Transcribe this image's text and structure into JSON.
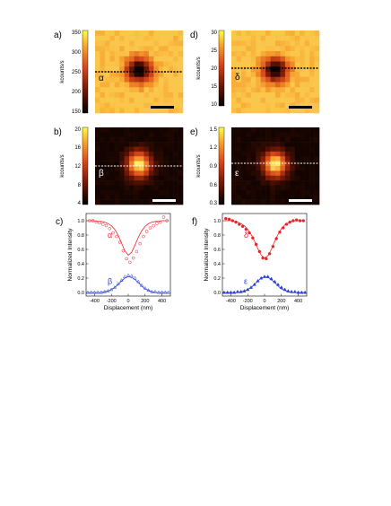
{
  "colors": {
    "red": "#e8252a",
    "blue": "#2b3fd6",
    "cbar_top": "#ffff40",
    "cbar_bottom": "#000000"
  },
  "panels": [
    {
      "id": "a",
      "label": "a)",
      "style": "light",
      "cbar_label": "kcounts/s",
      "ticks": [
        "350",
        "300",
        "250",
        "200",
        "150"
      ],
      "greek": "α",
      "line_color": "#000000",
      "scalebar_color": "#000000"
    },
    {
      "id": "b",
      "label": "b)",
      "style": "dark",
      "cbar_label": "kcounts/s",
      "ticks": [
        "20",
        "16",
        "12",
        "8",
        "4"
      ],
      "greek": "β",
      "line_color": "#ffffff",
      "scalebar_color": "#ffffff"
    },
    {
      "id": "d",
      "label": "d)",
      "style": "light",
      "cbar_label": "kcounts/s",
      "ticks": [
        "30",
        "25",
        "20",
        "15",
        "10"
      ],
      "greek": "δ",
      "line_color": "#000000",
      "scalebar_color": "#000000"
    },
    {
      "id": "e",
      "label": "e)",
      "style": "dark",
      "cbar_label": "kcounts/s",
      "ticks": [
        "1.5",
        "1.2",
        "0.9",
        "0.6",
        "0.3"
      ],
      "greek": "ε",
      "line_color": "#ffffff",
      "scalebar_color": "#ffffff"
    }
  ],
  "chart_data": [
    {
      "id": "c",
      "label": "c)",
      "type": "scatter",
      "xlabel": "Displacement (nm)",
      "ylabel": "Normalized Intensity",
      "xlim": [
        -500,
        500
      ],
      "ylim": [
        -0.05,
        1.1
      ],
      "xticks": [
        -400,
        -200,
        0,
        200,
        400
      ],
      "yticks": [
        0.0,
        0.2,
        0.4,
        0.6,
        0.8,
        1.0
      ],
      "series": [
        {
          "name": "α",
          "color": "#e8252a",
          "marker": "open-circle",
          "x": [
            -460,
            -420,
            -380,
            -340,
            -300,
            -260,
            -220,
            -180,
            -140,
            -100,
            -60,
            -20,
            20,
            60,
            100,
            140,
            180,
            220,
            260,
            300,
            340,
            380,
            420,
            460
          ],
          "y": [
            1.0,
            1.0,
            0.98,
            0.97,
            0.95,
            0.93,
            0.89,
            0.83,
            0.78,
            0.7,
            0.58,
            0.47,
            0.42,
            0.48,
            0.57,
            0.68,
            0.78,
            0.85,
            0.9,
            0.93,
            0.96,
            0.98,
            1.05,
            1.0
          ]
        },
        {
          "name": "α fit",
          "color": "#e8252a",
          "marker": "line",
          "x": [
            -480,
            -440,
            -400,
            -360,
            -320,
            -280,
            -240,
            -200,
            -160,
            -120,
            -80,
            -40,
            0,
            40,
            80,
            120,
            160,
            200,
            240,
            280,
            320,
            360,
            400,
            440,
            480
          ],
          "y": [
            1.0,
            1.0,
            1.0,
            0.99,
            0.99,
            0.98,
            0.96,
            0.93,
            0.88,
            0.8,
            0.69,
            0.58,
            0.52,
            0.56,
            0.66,
            0.77,
            0.86,
            0.92,
            0.96,
            0.98,
            0.99,
            0.99,
            1.0,
            1.0,
            1.0
          ]
        },
        {
          "name": "β",
          "color": "#2b3fd6",
          "marker": "open-triangle",
          "x": [
            -480,
            -440,
            -400,
            -360,
            -320,
            -280,
            -240,
            -200,
            -160,
            -120,
            -80,
            -40,
            0,
            40,
            80,
            120,
            160,
            200,
            240,
            280,
            320,
            360,
            400,
            440,
            480
          ],
          "y": [
            0.0,
            0.0,
            0.0,
            0.0,
            0.0,
            0.01,
            0.02,
            0.04,
            0.07,
            0.12,
            0.17,
            0.22,
            0.24,
            0.23,
            0.2,
            0.15,
            0.1,
            0.06,
            0.03,
            0.01,
            0.01,
            0.0,
            0.0,
            0.0,
            0.0
          ]
        },
        {
          "name": "β fit",
          "color": "#2b3fd6",
          "marker": "line",
          "x": [
            -480,
            -440,
            -400,
            -360,
            -320,
            -280,
            -240,
            -200,
            -160,
            -120,
            -80,
            -40,
            0,
            40,
            80,
            120,
            160,
            200,
            240,
            280,
            320,
            360,
            400,
            440,
            480
          ],
          "y": [
            0.0,
            0.0,
            0.0,
            0.0,
            0.0,
            0.01,
            0.02,
            0.04,
            0.07,
            0.11,
            0.16,
            0.2,
            0.22,
            0.21,
            0.18,
            0.14,
            0.09,
            0.05,
            0.03,
            0.01,
            0.0,
            0.0,
            0.0,
            0.0,
            0.0
          ]
        }
      ]
    },
    {
      "id": "f",
      "label": "f)",
      "type": "scatter",
      "xlabel": "Displacement (nm)",
      "ylabel": "Normalized Intensity",
      "xlim": [
        -500,
        500
      ],
      "ylim": [
        -0.05,
        1.1
      ],
      "xticks": [
        -400,
        -200,
        0,
        200,
        400
      ],
      "yticks": [
        0.0,
        0.2,
        0.4,
        0.6,
        0.8,
        1.0
      ],
      "series": [
        {
          "name": "δ",
          "color": "#e8252a",
          "marker": "filled-circle",
          "x": [
            -460,
            -420,
            -380,
            -340,
            -300,
            -260,
            -220,
            -180,
            -140,
            -100,
            -60,
            -20,
            20,
            60,
            100,
            140,
            180,
            220,
            260,
            300,
            340,
            380,
            420,
            460
          ],
          "y": [
            1.03,
            1.02,
            1.0,
            0.98,
            0.95,
            0.92,
            0.88,
            0.83,
            0.76,
            0.67,
            0.57,
            0.48,
            0.47,
            0.54,
            0.64,
            0.75,
            0.84,
            0.9,
            0.95,
            0.98,
            1.0,
            1.01,
            1.0,
            1.0
          ]
        },
        {
          "name": "δ fit",
          "color": "#e8252a",
          "marker": "line",
          "x": [
            -480,
            -440,
            -400,
            -360,
            -320,
            -280,
            -240,
            -200,
            -160,
            -120,
            -80,
            -40,
            0,
            40,
            80,
            120,
            160,
            200,
            240,
            280,
            320,
            360,
            400,
            440,
            480
          ],
          "y": [
            1.0,
            1.0,
            1.0,
            0.99,
            0.98,
            0.96,
            0.93,
            0.88,
            0.81,
            0.72,
            0.61,
            0.52,
            0.48,
            0.51,
            0.6,
            0.71,
            0.81,
            0.89,
            0.94,
            0.97,
            0.99,
            1.0,
            1.0,
            1.0,
            1.0
          ]
        },
        {
          "name": "ε",
          "color": "#2b3fd6",
          "marker": "filled-triangle",
          "x": [
            -480,
            -440,
            -400,
            -360,
            -320,
            -280,
            -240,
            -200,
            -160,
            -120,
            -80,
            -40,
            0,
            40,
            80,
            120,
            160,
            200,
            240,
            280,
            320,
            360,
            400,
            440,
            480
          ],
          "y": [
            0.0,
            0.0,
            0.0,
            0.0,
            0.01,
            0.01,
            0.02,
            0.04,
            0.07,
            0.11,
            0.16,
            0.2,
            0.22,
            0.22,
            0.19,
            0.15,
            0.11,
            0.07,
            0.04,
            0.02,
            0.01,
            0.01,
            0.0,
            0.0,
            0.0
          ]
        },
        {
          "name": "ε fit",
          "color": "#2b3fd6",
          "marker": "line",
          "x": [
            -480,
            -440,
            -400,
            -360,
            -320,
            -280,
            -240,
            -200,
            -160,
            -120,
            -80,
            -40,
            0,
            40,
            80,
            120,
            160,
            200,
            240,
            280,
            320,
            360,
            400,
            440,
            480
          ],
          "y": [
            0.0,
            0.0,
            0.0,
            0.0,
            0.0,
            0.01,
            0.02,
            0.04,
            0.07,
            0.11,
            0.16,
            0.2,
            0.22,
            0.21,
            0.18,
            0.14,
            0.09,
            0.05,
            0.03,
            0.01,
            0.0,
            0.0,
            0.0,
            0.0,
            0.0
          ]
        }
      ]
    }
  ]
}
